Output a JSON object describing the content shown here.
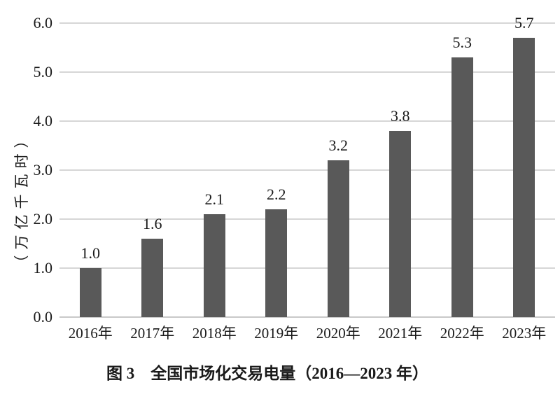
{
  "chart_data": {
    "type": "bar",
    "title": "图 3　全国市场化交易电量（2016—2023 年）",
    "xlabel": "",
    "ylabel": "（万亿千瓦时）",
    "categories": [
      "2016年",
      "2017年",
      "2018年",
      "2019年",
      "2020年",
      "2021年",
      "2022年",
      "2023年"
    ],
    "values": [
      1.0,
      1.6,
      2.1,
      2.2,
      3.2,
      3.8,
      5.3,
      5.7
    ],
    "value_labels": [
      "1.0",
      "1.6",
      "2.1",
      "2.2",
      "3.2",
      "3.8",
      "5.3",
      "5.7"
    ],
    "ylim": [
      0,
      6
    ],
    "ytick_labels": [
      "0.0",
      "1.0",
      "2.0",
      "3.0",
      "4.0",
      "5.0",
      "6.0"
    ],
    "grid": true,
    "legend": false,
    "colors": {
      "bar": "#595959",
      "gridline": "#d6d6d6",
      "axis_line": "#c9c9c9",
      "text": "#1a1a1a",
      "background": "#ffffff"
    }
  }
}
